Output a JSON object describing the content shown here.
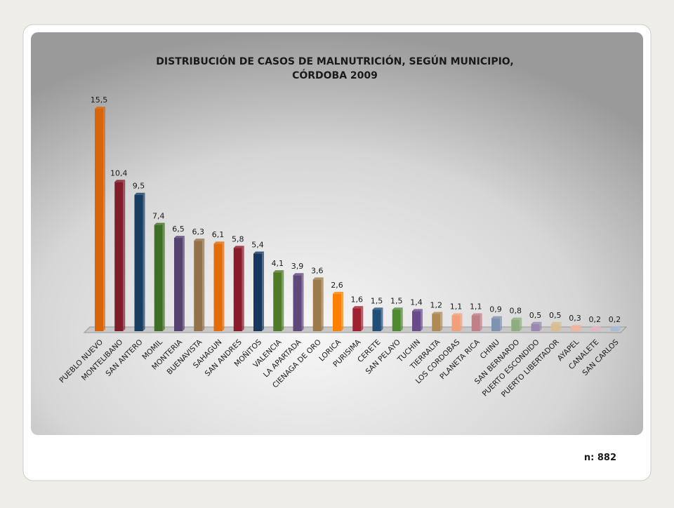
{
  "chart_data": {
    "type": "bar",
    "title": "DISTRIBUCIÓN DE CASOS DE MALNUTRICIÓN, SEGÚN MUNICIPIO,",
    "subtitle": "CÓRDOBA 2009",
    "categories": [
      "PUEBLO NUEVO",
      "MONTELIBANO",
      "SAN ANTERO",
      "MOMIL",
      "MONTERIA",
      "BUENAVISTA",
      "SAHAGUN",
      "SAN ANDRES",
      "MOÑITOS",
      "VALENCIA",
      "LA APARTADA",
      "CIENAGA DE ORO",
      "LORICA",
      "PURISIMA",
      "CERETE",
      "SAN PELAYO",
      "TUCHIN",
      "TIERRALTA",
      "LOS CORDOBAS",
      "PLANETA RICA",
      "CHINU",
      "SAN BERNARDO",
      "PUERTO ESCONDIDO",
      "PUERTO LIBERTADOR",
      "AYAPEL",
      "CANALETE",
      "SAN CARLOS"
    ],
    "values": [
      15.5,
      10.4,
      9.5,
      7.4,
      6.5,
      6.3,
      6.1,
      5.8,
      5.4,
      4.1,
      3.9,
      3.6,
      2.6,
      1.6,
      1.5,
      1.5,
      1.4,
      1.2,
      1.1,
      1.1,
      0.9,
      0.8,
      0.5,
      0.5,
      0.3,
      0.2,
      0.2
    ],
    "value_labels": [
      "15,5",
      "10,4",
      "9,5",
      "7,4",
      "6,5",
      "6,3",
      "6,1",
      "5,8",
      "5,4",
      "4,1",
      "3,9",
      "3,6",
      "2,6",
      "1,6",
      "1,5",
      "1,5",
      "1,4",
      "1,2",
      "1,1",
      "1,1",
      "0,9",
      "0,8",
      "0,5",
      "0,5",
      "0,3",
      "0,2",
      "0,2"
    ],
    "colors": [
      "#d9650a",
      "#7f1d2a",
      "#173d63",
      "#3f6e25",
      "#54426f",
      "#93714a",
      "#e36c09",
      "#8b1a2a",
      "#17375e",
      "#4f7a28",
      "#5f497a",
      "#9c7a4a",
      "#ff8000",
      "#a0202f",
      "#1f4e79",
      "#4f8a30",
      "#6a4a8a",
      "#b08a55",
      "#f2a07a",
      "#c08088",
      "#7f92b0",
      "#8fae7f",
      "#9a88b0",
      "#d8bc92",
      "#f4b4a0",
      "#e2b8bf",
      "#a8bcd8"
    ],
    "note": "n: 882"
  }
}
